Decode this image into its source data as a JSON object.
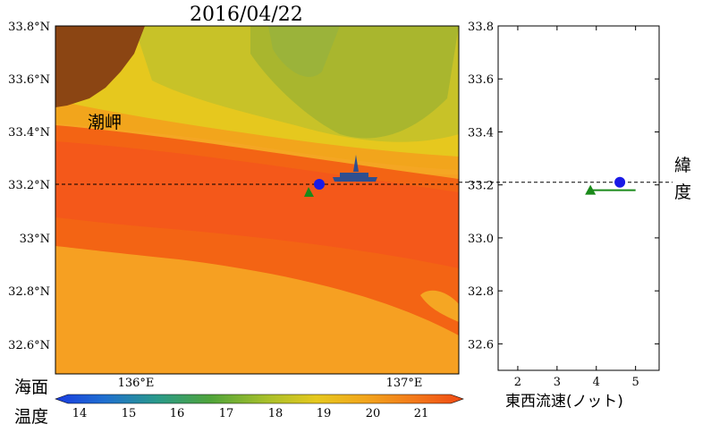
{
  "title": "2016/04/22",
  "map": {
    "lat_ticks": [
      "33.8°N",
      "33.6°N",
      "33.4°N",
      "33.2°N",
      "33°N",
      "32.8°N",
      "32.6°N"
    ],
    "lon_ticks": [
      "136°E",
      "137°E"
    ],
    "place_label": "潮岬",
    "ship_latitude": 33.21
  },
  "colorbar": {
    "label_line1": "海面",
    "label_line2": "温度",
    "ticks": [
      "14",
      "15",
      "16",
      "17",
      "18",
      "19",
      "20",
      "21"
    ]
  },
  "side": {
    "lat_ticks": [
      "33.8",
      "33.6",
      "33.4",
      "33.2",
      "33.0",
      "32.8",
      "32.6"
    ],
    "x_ticks": [
      "2",
      "3",
      "4",
      "5"
    ],
    "ylabel_line1": "緯",
    "ylabel_line2": "度",
    "xlabel": "東西流速(ノット)"
  },
  "chart_data": [
    {
      "type": "heatmap",
      "title": "2016/04/22",
      "xlim": [
        135.5,
        137.2
      ],
      "ylim": [
        32.5,
        33.8
      ],
      "colorbar_range": [
        14,
        21.5
      ],
      "colors": {
        "land": "#8b4513",
        "coast_green": "#a9b62e",
        "current_core": "#f36414",
        "offshore": "#f5a623",
        "marker_blue": "#1a1ae6",
        "marker_green": "#1a8a1a",
        "ship": "#2f4f8f"
      },
      "markers": [
        {
          "shape": "circle",
          "lon": 136.78,
          "lat": 33.21,
          "color": "blue"
        },
        {
          "shape": "triangle",
          "lon": 136.74,
          "lat": 33.18,
          "color": "green"
        }
      ],
      "ship_lat": 33.21
    },
    {
      "type": "line",
      "xlabel": "東西流速(ノット)",
      "ylabel": "緯度",
      "xlim": [
        1.5,
        5.6
      ],
      "ylim": [
        32.5,
        33.8
      ],
      "series": [
        {
          "values": [
            {
              "x": 3.85,
              "y": 33.18
            },
            {
              "x": 5.0,
              "y": 33.18
            }
          ]
        }
      ],
      "markers": [
        {
          "shape": "circle",
          "x": 4.6,
          "y": 33.21,
          "color": "blue"
        },
        {
          "shape": "triangle",
          "x": 3.85,
          "y": 33.18,
          "color": "green"
        }
      ],
      "hline_y": 33.21
    }
  ]
}
